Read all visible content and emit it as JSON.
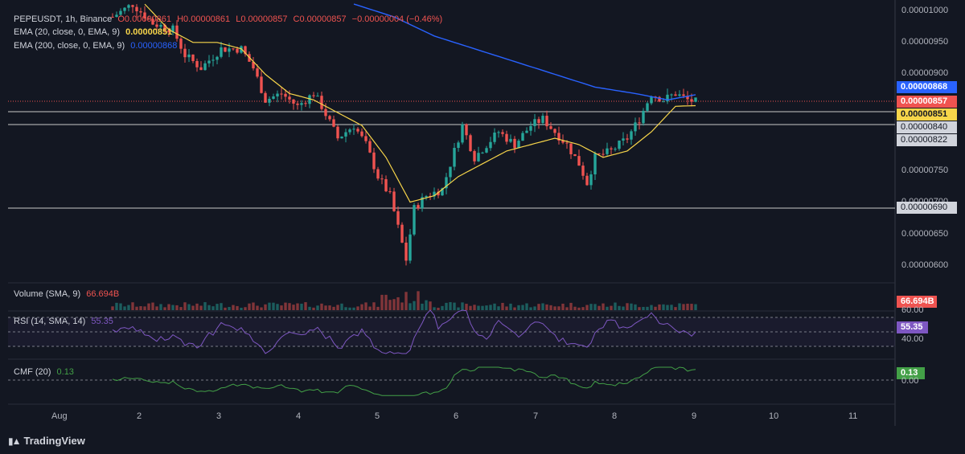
{
  "header": {
    "symbol_line": "PEPEUSDT, 1h, Binance",
    "open": "O0.00000861",
    "high": "H0.00000861",
    "low": "L0.00000857",
    "close": "C0.00000857",
    "change": "−0.00000004 (−0.46%)"
  },
  "indicators": {
    "ema20_label": "EMA (20, close, 0, EMA, 9)",
    "ema20_value": "0.00000851",
    "ema200_label": "EMA (200, close, 0, EMA, 9)",
    "ema200_value": "0.00000868",
    "volume_label": "Volume (SMA, 9)",
    "volume_value": "66.694B",
    "rsi_label": "RSI (14, SMA, 14)",
    "rsi_value": "55.35",
    "cmf_label": "CMF (20)",
    "cmf_value": "0.13"
  },
  "price_axis": [
    "0.00001000",
    "0.00000950",
    "0.00000900",
    "0.00000750",
    "0.00000700",
    "0.00000650",
    "0.00000600"
  ],
  "price_tags": {
    "ema200": "0.00000868",
    "last": "0.00000857",
    "ema20": "0.00000851",
    "level1": "0.00000840",
    "level2": "0.00000822",
    "level3": "0.00000690"
  },
  "rsi_axis": [
    "60.00",
    "40.00"
  ],
  "cmf_axis": [
    "0.00"
  ],
  "time_axis": [
    "Aug",
    "2",
    "3",
    "4",
    "5",
    "6",
    "7",
    "8",
    "9",
    "10",
    "11"
  ],
  "brand": "TradingView",
  "colors": {
    "up": "#26a69a",
    "down": "#ef5350",
    "ema20": "#f7d54a",
    "ema200": "#2962ff",
    "rsi": "#7e57c2",
    "cmf": "#43a047",
    "background": "#131722"
  },
  "chart_data": {
    "type": "candlestick",
    "symbol": "PEPEUSDT",
    "interval": "1h",
    "exchange": "Binance",
    "x_axis_labels": [
      "Aug",
      "2",
      "3",
      "4",
      "5",
      "6",
      "7",
      "8",
      "9",
      "10",
      "11"
    ],
    "y_range": [
      5.8e-06,
      1.01e-05
    ],
    "horizontal_levels": [
      8.4e-06,
      8.22e-06,
      6.9e-06
    ],
    "price_path": [
      [
        0,
        9.9e-06
      ],
      [
        5,
        1.01e-05
      ],
      [
        10,
        9.8e-06
      ],
      [
        15,
        9.7e-06
      ],
      [
        18,
        9.3e-06
      ],
      [
        22,
        9.1e-06
      ],
      [
        27,
        9.4e-06
      ],
      [
        32,
        9.4e-06
      ],
      [
        35,
        9.1e-06
      ],
      [
        38,
        8.6e-06
      ],
      [
        42,
        8.7e-06
      ],
      [
        46,
        8.5e-06
      ],
      [
        50,
        8.7e-06
      ],
      [
        52,
        8.5e-06
      ],
      [
        56,
        8e-06
      ],
      [
        60,
        8.2e-06
      ],
      [
        63,
        7.9e-06
      ],
      [
        66,
        7.4e-06
      ],
      [
        69,
        7.1e-06
      ],
      [
        71,
        6.6e-06
      ],
      [
        73,
        6.1e-06
      ],
      [
        75,
        6.9e-06
      ],
      [
        78,
        7.1e-06
      ],
      [
        82,
        7.2e-06
      ],
      [
        85,
        7.8e-06
      ],
      [
        87,
        8.2e-06
      ],
      [
        90,
        7.7e-06
      ],
      [
        93,
        7.9e-06
      ],
      [
        96,
        8.1e-06
      ],
      [
        100,
        7.9e-06
      ],
      [
        104,
        8.2e-06
      ],
      [
        107,
        8.3e-06
      ],
      [
        110,
        8.1e-06
      ],
      [
        113,
        7.9e-06
      ],
      [
        116,
        7.6e-06
      ],
      [
        118,
        7.3e-06
      ],
      [
        120,
        7.7e-06
      ],
      [
        124,
        7.8e-06
      ],
      [
        128,
        8e-06
      ],
      [
        131,
        8.3e-06
      ],
      [
        134,
        8.7e-06
      ],
      [
        137,
        8.6e-06
      ],
      [
        140,
        8.7e-06
      ],
      [
        143,
        8.6e-06
      ],
      [
        145,
        8.57e-06
      ]
    ],
    "ema20_path": [
      [
        8,
        1.01e-05
      ],
      [
        14,
        9.7e-06
      ],
      [
        20,
        9.5e-06
      ],
      [
        26,
        9.5e-06
      ],
      [
        32,
        9.4e-06
      ],
      [
        38,
        9e-06
      ],
      [
        44,
        8.7e-06
      ],
      [
        50,
        8.6e-06
      ],
      [
        56,
        8.4e-06
      ],
      [
        62,
        8.2e-06
      ],
      [
        68,
        7.7e-06
      ],
      [
        74,
        7e-06
      ],
      [
        80,
        7.1e-06
      ],
      [
        86,
        7.4e-06
      ],
      [
        92,
        7.6e-06
      ],
      [
        98,
        7.8e-06
      ],
      [
        104,
        7.9e-06
      ],
      [
        110,
        8e-06
      ],
      [
        116,
        7.9e-06
      ],
      [
        122,
        7.7e-06
      ],
      [
        128,
        7.8e-06
      ],
      [
        134,
        8.1e-06
      ],
      [
        140,
        8.5e-06
      ],
      [
        145,
        8.51e-06
      ]
    ],
    "ema200_path": [
      [
        60,
        1.01e-05
      ],
      [
        70,
        9.9e-06
      ],
      [
        80,
        9.6e-06
      ],
      [
        90,
        9.4e-06
      ],
      [
        100,
        9.2e-06
      ],
      [
        110,
        9e-06
      ],
      [
        120,
        8.8e-06
      ],
      [
        130,
        8.7e-06
      ],
      [
        138,
        8.6e-06
      ],
      [
        145,
        8.68e-06
      ]
    ],
    "volume_last": "66.694B",
    "rsi_last": 55.35,
    "rsi_levels": [
      70,
      50,
      30
    ],
    "cmf_last": 0.13,
    "cmf_zero": 0
  }
}
